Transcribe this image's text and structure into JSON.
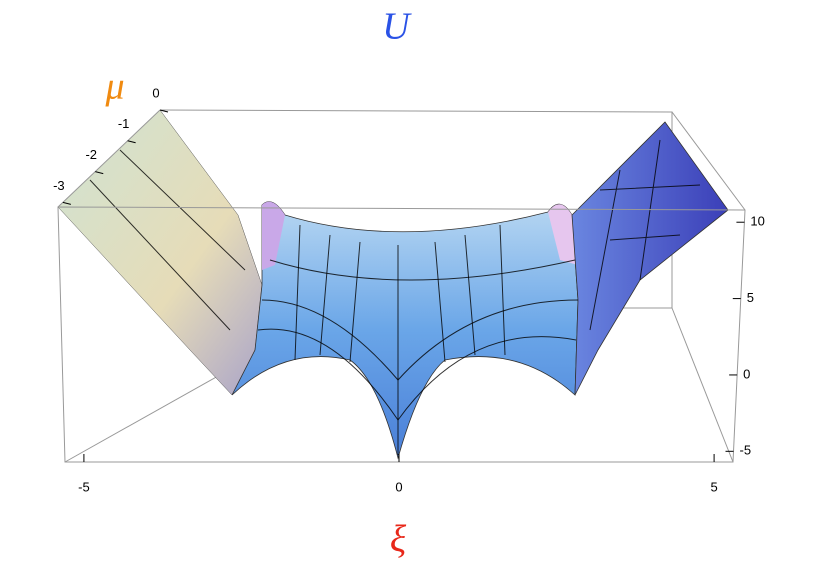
{
  "chart_data": {
    "type": "surface",
    "title": "U",
    "xlabel": "ξ",
    "ylabel": "μ",
    "xlim": [
      -5.3,
      5.3
    ],
    "xticks": [
      -5,
      0,
      5
    ],
    "ylim": [
      -3.15,
      0
    ],
    "yticks": [
      -3,
      -2,
      -1,
      0
    ],
    "zlim": [
      -5.7,
      10.8
    ],
    "zticks": [
      -5,
      0,
      5,
      10
    ]
  }
}
